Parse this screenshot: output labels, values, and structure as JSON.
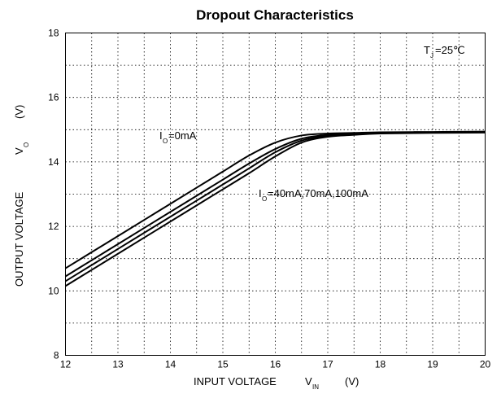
{
  "chart_data": {
    "type": "line",
    "title": "Dropout Characteristics",
    "xlabel": {
      "main": "INPUT VOLTAGE",
      "symbol": "V",
      "subscript": "IN",
      "unit": "(V)"
    },
    "ylabel": {
      "main": "OUTPUT VOLTAGE",
      "symbol": "V",
      "subscript": "O",
      "unit": "(V)"
    },
    "xlim": [
      12,
      20
    ],
    "ylim": [
      8,
      18
    ],
    "x_ticks": [
      "12",
      "13",
      "14",
      "15",
      "16",
      "17",
      "18",
      "19",
      "20"
    ],
    "y_ticks": [
      "8",
      "10",
      "12",
      "14",
      "16",
      "18"
    ],
    "grid": true,
    "annotations": {
      "condition": {
        "symbol": "T",
        "subscript": "J",
        "value": "=25℃"
      },
      "curve_top": {
        "symbol": "I",
        "subscript": "O",
        "value": "=0mA"
      },
      "curve_rest": {
        "symbol": "I",
        "subscript": "O",
        "value": "=40mA,70mA,100mA"
      }
    },
    "series": [
      {
        "x": [
          12,
          12.5,
          13,
          13.5,
          14,
          14.5,
          15,
          15.5,
          16,
          16.5,
          17,
          17.5,
          18,
          19,
          20
        ],
        "y": [
          10.7,
          11.2,
          11.7,
          12.2,
          12.7,
          13.2,
          13.7,
          14.2,
          14.6,
          14.82,
          14.88,
          14.9,
          14.92,
          14.93,
          14.94
        ]
      },
      {
        "x": [
          12,
          12.5,
          13,
          13.5,
          14,
          14.5,
          15,
          15.5,
          16,
          16.5,
          17,
          17.5,
          18,
          19,
          20
        ],
        "y": [
          10.45,
          10.95,
          11.45,
          11.95,
          12.45,
          12.95,
          13.45,
          13.95,
          14.4,
          14.72,
          14.84,
          14.88,
          14.9,
          14.92,
          14.93
        ]
      },
      {
        "x": [
          12,
          12.5,
          13,
          13.5,
          14,
          14.5,
          15,
          15.5,
          16,
          16.5,
          17,
          17.5,
          18,
          19,
          20
        ],
        "y": [
          10.3,
          10.8,
          11.3,
          11.8,
          12.3,
          12.8,
          13.3,
          13.8,
          14.3,
          14.66,
          14.81,
          14.86,
          14.89,
          14.91,
          14.92
        ]
      },
      {
        "x": [
          12,
          12.5,
          13,
          13.5,
          14,
          14.5,
          15,
          15.5,
          16,
          16.5,
          17,
          17.5,
          18,
          19,
          20
        ],
        "y": [
          10.15,
          10.65,
          11.15,
          11.65,
          12.15,
          12.65,
          13.15,
          13.65,
          14.17,
          14.6,
          14.78,
          14.84,
          14.88,
          14.9,
          14.91
        ]
      }
    ]
  }
}
